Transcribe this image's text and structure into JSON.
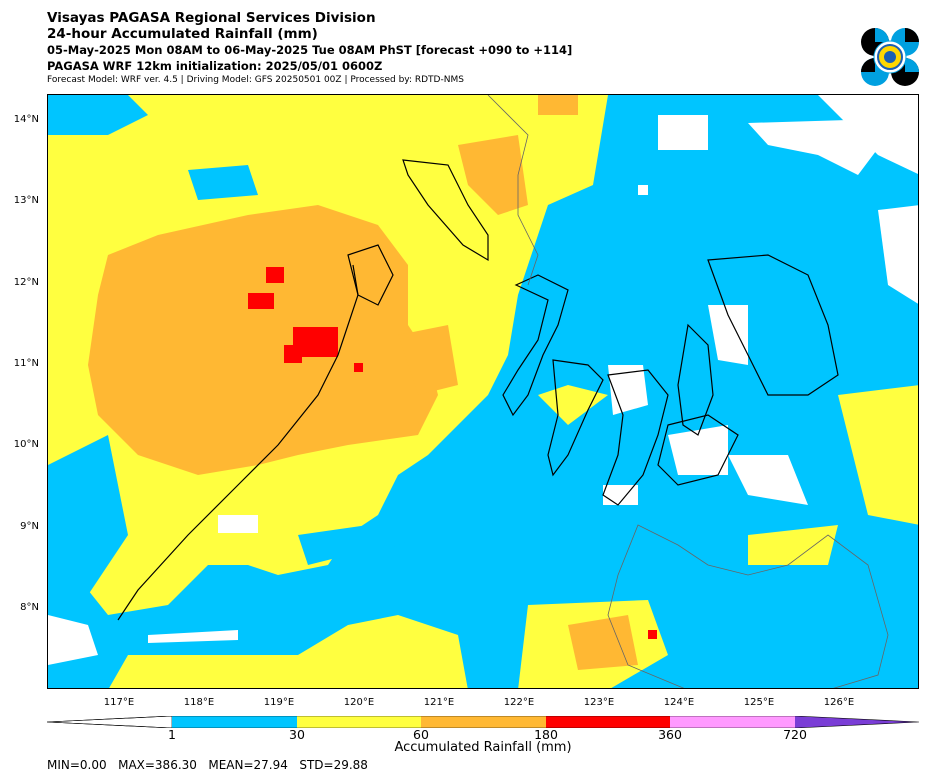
{
  "header": {
    "line1": "Visayas PAGASA Regional Services Division",
    "line2": "24-hour Accumulated Rainfall (mm)",
    "line3": "05-May-2025 Mon 08AM to 06-May-2025 Tue 08AM PhST [forecast +090 to +114]",
    "line4": "PAGASA WRF 12km initialization: 2025/05/01 0600Z",
    "line5": "Forecast Model: WRF ver. 4.5 | Driving Model: GFS 20250501 00Z | Processed by: RDTD-NMS"
  },
  "map": {
    "lat_labels": [
      "14°N",
      "13°N",
      "12°N",
      "11°N",
      "10°N",
      "9°N",
      "8°N"
    ],
    "lon_labels": [
      "117°E",
      "118°E",
      "119°E",
      "120°E",
      "121°E",
      "122°E",
      "123°E",
      "124°E",
      "125°E",
      "126°E"
    ]
  },
  "colorbar": {
    "label": "Accumulated Rainfall (mm)",
    "ticks": [
      "1",
      "30",
      "60",
      "180",
      "360",
      "720"
    ],
    "colors": [
      "#00c5ff",
      "#ffff40",
      "#ffb833",
      "#ff0000",
      "#ff99ff",
      "#7a3dd6"
    ]
  },
  "stats": {
    "text": "MIN=0.00   MAX=386.30   MEAN=27.94   STD=29.88"
  }
}
